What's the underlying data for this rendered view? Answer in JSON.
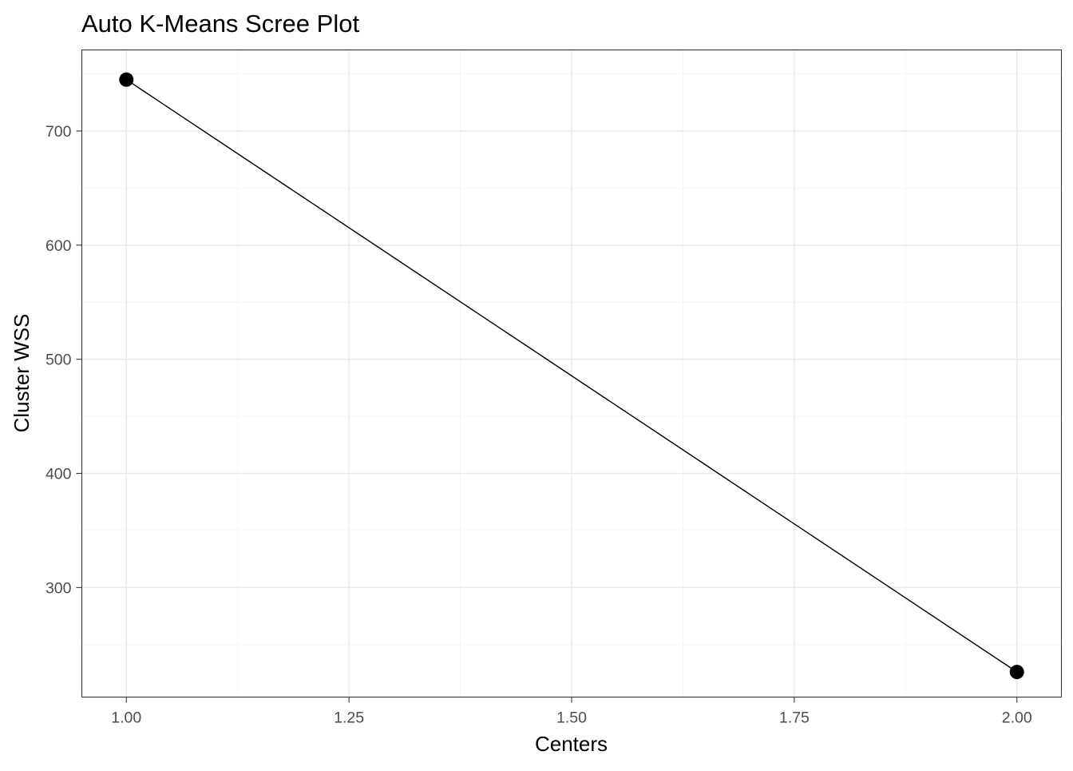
{
  "chart_data": {
    "type": "line",
    "title": "Auto K-Means Scree Plot",
    "xlabel": "Centers",
    "ylabel": "Cluster WSS",
    "x": [
      1.0,
      2.0
    ],
    "series": [
      {
        "values": [
          745,
          226
        ]
      }
    ],
    "xlim": [
      0.95,
      2.05
    ],
    "ylim": [
      204,
      771
    ],
    "x_ticks": [
      1.0,
      1.25,
      1.5,
      1.75,
      2.0
    ],
    "x_tick_labels": [
      "1.00",
      "1.25",
      "1.50",
      "1.75",
      "2.00"
    ],
    "x_minor_ticks": [
      1.125,
      1.375,
      1.625,
      1.875
    ],
    "y_ticks": [
      300,
      400,
      500,
      600,
      700
    ],
    "y_tick_labels": [
      "300",
      "400",
      "500",
      "600",
      "700"
    ],
    "y_minor_ticks": [
      250,
      350,
      450,
      550,
      650,
      750
    ],
    "grid": true,
    "legend": "none",
    "colors": {
      "line": "#000000",
      "point": "#000000",
      "panel_border": "#333333",
      "grid_major": "#ebebeb",
      "grid_minor": "#f5f5f5",
      "tick_label": "#4d4d4d"
    }
  }
}
